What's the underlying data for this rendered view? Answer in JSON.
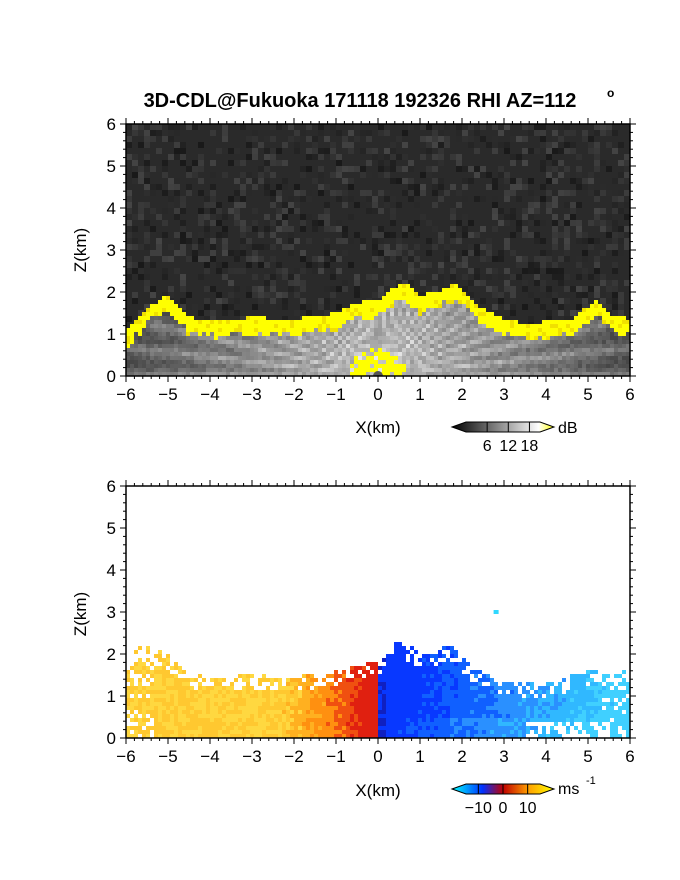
{
  "title": "3D-CDL@Fukuoka 171118 192326 RHI AZ=112",
  "title_degree": "o",
  "chart_data": [
    {
      "type": "heatmap",
      "quantity": "signal intensity",
      "xlabel": "X(km)",
      "ylabel": "Z(km)",
      "xlim": [
        -6,
        6
      ],
      "ylim": [
        0,
        6
      ],
      "x_ticks": [
        "-6",
        "-5",
        "-4",
        "-3",
        "-2",
        "-1",
        "0",
        "1",
        "2",
        "3",
        "4",
        "5",
        "6"
      ],
      "y_ticks": [
        "0",
        "1",
        "2",
        "3",
        "4",
        "5",
        "6"
      ],
      "colorbar": {
        "unit": "dB",
        "ticks": [
          "6",
          "12",
          "18"
        ],
        "range": [
          0,
          21
        ],
        "colors": [
          "#000000",
          "#ffffff",
          "#ffff00"
        ]
      },
      "background_color": "#2a2a2a",
      "highlight_color": "#ffff00",
      "echo_top_km": [
        [
          -6.0,
          1.0
        ],
        [
          -5.5,
          1.55
        ],
        [
          -5.0,
          1.9
        ],
        [
          -4.5,
          1.35
        ],
        [
          -4.0,
          1.25
        ],
        [
          -3.0,
          1.35
        ],
        [
          -2.0,
          1.3
        ],
        [
          -1.0,
          1.45
        ],
        [
          -0.5,
          1.7
        ],
        [
          0.0,
          1.75
        ],
        [
          0.3,
          2.0
        ],
        [
          0.6,
          2.2
        ],
        [
          1.0,
          1.85
        ],
        [
          1.5,
          2.0
        ],
        [
          1.9,
          2.15
        ],
        [
          2.4,
          1.6
        ],
        [
          3.0,
          1.3
        ],
        [
          3.5,
          1.2
        ],
        [
          4.0,
          1.25
        ],
        [
          4.6,
          1.3
        ],
        [
          5.2,
          1.75
        ],
        [
          5.6,
          1.4
        ],
        [
          6.0,
          1.3
        ]
      ]
    },
    {
      "type": "heatmap",
      "quantity": "radial velocity",
      "xlabel": "X(km)",
      "ylabel": "Z(km)",
      "xlim": [
        -6,
        6
      ],
      "ylim": [
        0,
        6
      ],
      "x_ticks": [
        "-6",
        "-5",
        "-4",
        "-3",
        "-2",
        "-1",
        "0",
        "1",
        "2",
        "3",
        "4",
        "5",
        "6"
      ],
      "y_ticks": [
        "0",
        "1",
        "2",
        "3",
        "4",
        "5",
        "6"
      ],
      "colorbar": {
        "unit": "ms",
        "unit_exponent": "-1",
        "ticks": [
          "−10",
          "0",
          "10"
        ],
        "range": [
          -15,
          15
        ],
        "colors": [
          "#00ffff",
          "#0030ff",
          "#c00000",
          "#ffa000",
          "#ffff00"
        ]
      },
      "echo_top_km": [
        [
          -6.0,
          1.4
        ],
        [
          -5.7,
          2.2
        ],
        [
          -5.3,
          2.05
        ],
        [
          -5.0,
          1.95
        ],
        [
          -4.5,
          1.5
        ],
        [
          -4.0,
          1.4
        ],
        [
          -3.0,
          1.45
        ],
        [
          -2.0,
          1.4
        ],
        [
          -1.0,
          1.55
        ],
        [
          -0.5,
          1.65
        ],
        [
          0.0,
          1.8
        ],
        [
          0.4,
          2.3
        ],
        [
          0.8,
          2.1
        ],
        [
          1.3,
          1.9
        ],
        [
          1.7,
          2.2
        ],
        [
          2.2,
          1.7
        ],
        [
          2.8,
          1.35
        ],
        [
          3.5,
          1.25
        ],
        [
          4.2,
          1.3
        ],
        [
          5.0,
          1.55
        ],
        [
          5.5,
          1.6
        ],
        [
          6.0,
          1.5
        ]
      ],
      "isolated_echo": [
        2.8,
        3.0
      ]
    }
  ]
}
